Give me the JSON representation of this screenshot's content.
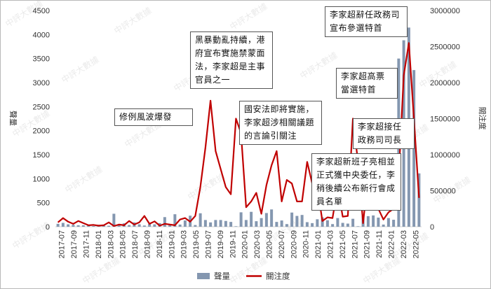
{
  "chart_data": {
    "type": "bar+line",
    "x_labels": [
      "2017-07",
      "2017-09",
      "2017-11",
      "2018-01",
      "2018-03",
      "2018-05",
      "2018-07",
      "2018-09",
      "2018-11",
      "2019-01",
      "2019-03",
      "2019-05",
      "2019-07",
      "2019-09",
      "2019-11",
      "2020-01",
      "2020-03",
      "2020-05",
      "2020-07",
      "2020-09",
      "2020-11",
      "2021-01",
      "2021-03",
      "2021-05",
      "2021-07",
      "2021-09",
      "2021-11",
      "2022-01",
      "2022-03",
      "2022-05"
    ],
    "left_axis": {
      "title": "聲量",
      "min": 0,
      "max": 4500,
      "ticks": [
        "0",
        "500",
        "1000",
        "1500",
        "2000",
        "2500",
        "3000",
        "3500",
        "4000",
        "4500"
      ]
    },
    "right_axis": {
      "title": "關注度",
      "min": 0,
      "max": 3000000,
      "ticks": [
        "0",
        "500000",
        "1000000",
        "1500000",
        "2000000",
        "2500000",
        "3000000"
      ]
    },
    "series": [
      {
        "name": "聲量",
        "type": "bar",
        "color": "#8497b0",
        "values": [
          60,
          80,
          50,
          40,
          30,
          30,
          40,
          15,
          40,
          25,
          20,
          270,
          30,
          70,
          35,
          90,
          50,
          25,
          60,
          50,
          75,
          200,
          35,
          260,
          45,
          130,
          230,
          35,
          280,
          140,
          90,
          140,
          140,
          120,
          100,
          10,
          300,
          140,
          310,
          115,
          180,
          285,
          360,
          100,
          130,
          55,
          295,
          225,
          245,
          95,
          75,
          155,
          195,
          135,
          55,
          180,
          80,
          65,
          165,
          10,
          220,
          220,
          235,
          190,
          45,
          180,
          145,
          3500,
          3880,
          4145,
          3260,
          1110
        ]
      },
      {
        "name": "關注度",
        "type": "line",
        "color": "#c00000",
        "values": [
          60000,
          120000,
          70000,
          40000,
          80000,
          50000,
          20000,
          25000,
          15000,
          20000,
          60000,
          10000,
          30000,
          20000,
          80000,
          30000,
          60000,
          150000,
          40000,
          75000,
          15000,
          40000,
          30000,
          20000,
          100000,
          120000,
          70000,
          150000,
          550000,
          1100000,
          1750000,
          1050000,
          800000,
          550000,
          450000,
          1500000,
          1300000,
          270000,
          350000,
          470000,
          180000,
          580000,
          850000,
          1050000,
          350000,
          650000,
          600000,
          350000,
          350000,
          900000,
          600000,
          550000,
          80000,
          130000,
          120000,
          550000,
          140000,
          150000,
          1500000,
          900000,
          50000,
          700000,
          300000,
          250000,
          100000,
          200000,
          250000,
          700000,
          2100000,
          2550000,
          1500000,
          400000
        ]
      }
    ],
    "legend": {
      "position": "bottom"
    },
    "annotations": [
      "修例風波爆發",
      "黑暴動亂持續，港府宣布實施禁蒙面法，李家超是主事官員之一",
      "國安法即將實施，李家超涉相關議題的言論引關注",
      "李家超接任政務司司長",
      "李家超新班子亮相並正式獲中央委任，李稍後續公布新行會成員名單",
      "李家超高票當選特首",
      "李家超辭任政務司宣布參選特首"
    ]
  },
  "watermark": "中評大數據"
}
